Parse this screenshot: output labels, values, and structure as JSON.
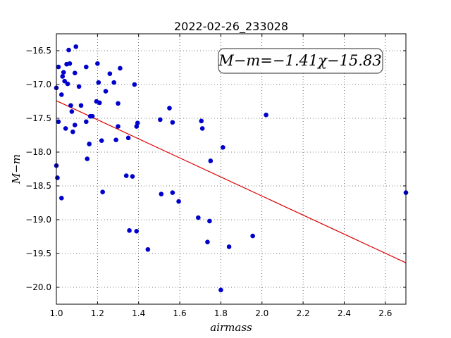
{
  "chart_data": {
    "type": "scatter",
    "title": "2022-02-26_233028",
    "xlabel": "airmass",
    "ylabel": "M−m",
    "xlim": [
      1.0,
      2.7
    ],
    "ylim": [
      -20.25,
      -16.25
    ],
    "x_ticks": [
      1.0,
      1.2,
      1.4,
      1.6,
      1.8,
      2.0,
      2.2,
      2.4,
      2.6
    ],
    "x_tick_labels": [
      "1.0",
      "1.2",
      "1.4",
      "1.6",
      "1.8",
      "2.0",
      "2.2",
      "2.4",
      "2.6"
    ],
    "y_ticks": [
      -16.5,
      -17.0,
      -17.5,
      -18.0,
      -18.5,
      -19.0,
      -19.5,
      -20.0
    ],
    "y_tick_labels": [
      "−16.5",
      "−17.0",
      "−17.5",
      "−18.0",
      "−18.5",
      "−19.0",
      "−19.5",
      "−20.0"
    ],
    "grid": true,
    "annotation": "M−m=−1.41χ−15.83",
    "point_color": "#0000cc",
    "fit_color": "#dd0000",
    "fit_line": {
      "slope": -1.41,
      "intercept": -15.83
    },
    "points": [
      [
        1.0,
        -17.05
      ],
      [
        1.01,
        -17.55
      ],
      [
        1.01,
        -16.74
      ],
      [
        1.0,
        -18.2
      ],
      [
        1.005,
        -18.38
      ],
      [
        1.025,
        -18.68
      ],
      [
        1.025,
        -17.15
      ],
      [
        1.03,
        -16.88
      ],
      [
        1.035,
        -16.82
      ],
      [
        1.04,
        -16.95
      ],
      [
        1.045,
        -17.65
      ],
      [
        1.05,
        -16.7
      ],
      [
        1.055,
        -16.99
      ],
      [
        1.06,
        -16.49
      ],
      [
        1.065,
        -16.69
      ],
      [
        1.07,
        -17.31
      ],
      [
        1.075,
        -17.4
      ],
      [
        1.08,
        -17.7
      ],
      [
        1.09,
        -16.83
      ],
      [
        1.09,
        -17.6
      ],
      [
        1.095,
        -16.44
      ],
      [
        1.11,
        -17.03
      ],
      [
        1.12,
        -17.31
      ],
      [
        1.145,
        -17.55
      ],
      [
        1.145,
        -16.74
      ],
      [
        1.15,
        -18.1
      ],
      [
        1.16,
        -17.88
      ],
      [
        1.165,
        -17.47
      ],
      [
        1.175,
        -17.47
      ],
      [
        1.195,
        -17.25
      ],
      [
        1.2,
        -16.69
      ],
      [
        1.205,
        -16.97
      ],
      [
        1.21,
        -17.27
      ],
      [
        1.22,
        -17.83
      ],
      [
        1.225,
        -18.59
      ],
      [
        1.24,
        -17.1
      ],
      [
        1.26,
        -16.84
      ],
      [
        1.28,
        -16.97
      ],
      [
        1.29,
        -17.82
      ],
      [
        1.3,
        -17.28
      ],
      [
        1.3,
        -17.62
      ],
      [
        1.31,
        -16.76
      ],
      [
        1.34,
        -18.35
      ],
      [
        1.35,
        -17.79
      ],
      [
        1.355,
        -19.16
      ],
      [
        1.37,
        -18.36
      ],
      [
        1.38,
        -17.0
      ],
      [
        1.39,
        -17.62
      ],
      [
        1.39,
        -19.17
      ],
      [
        1.395,
        -17.57
      ],
      [
        1.445,
        -19.44
      ],
      [
        1.505,
        -17.52
      ],
      [
        1.51,
        -18.62
      ],
      [
        1.55,
        -17.35
      ],
      [
        1.565,
        -17.56
      ],
      [
        1.565,
        -18.6
      ],
      [
        1.595,
        -18.73
      ],
      [
        1.69,
        -18.97
      ],
      [
        1.705,
        -17.54
      ],
      [
        1.71,
        -17.65
      ],
      [
        1.735,
        -19.33
      ],
      [
        1.745,
        -19.02
      ],
      [
        1.75,
        -18.13
      ],
      [
        1.8,
        -20.04
      ],
      [
        1.81,
        -17.93
      ],
      [
        1.84,
        -19.4
      ],
      [
        1.955,
        -19.24
      ],
      [
        2.02,
        -17.45
      ],
      [
        2.7,
        -18.6
      ]
    ]
  }
}
